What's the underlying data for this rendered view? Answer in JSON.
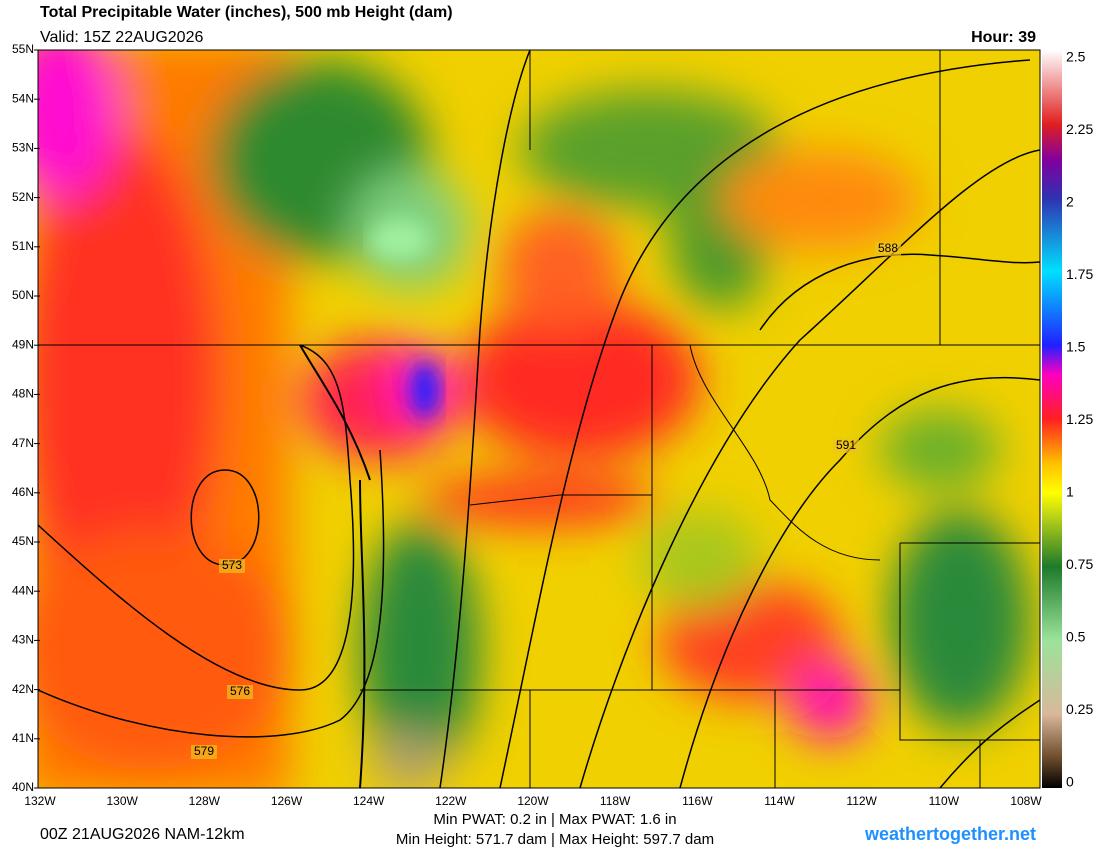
{
  "header": {
    "title": "Total Precipitable Water (inches), 500 mb Height (dam)",
    "valid": "Valid: 15Z 22AUG2026",
    "hour": "Hour: 39"
  },
  "map": {
    "lat_labels": [
      "55N",
      "54N",
      "53N",
      "52N",
      "51N",
      "50N",
      "49N",
      "48N",
      "47N",
      "46N",
      "45N",
      "44N",
      "43N",
      "42N",
      "41N",
      "40N"
    ],
    "lon_labels": [
      "132W",
      "130W",
      "128W",
      "126W",
      "124W",
      "122W",
      "120W",
      "118W",
      "116W",
      "114W",
      "112W",
      "110W",
      "108W"
    ],
    "contour_labels": [
      "573",
      "576",
      "579",
      "588",
      "591"
    ]
  },
  "colorbar": {
    "range": [
      0,
      2.5
    ],
    "ticks": [
      2.5,
      2.25,
      2,
      1.75,
      1.5,
      1.25,
      1,
      0.75,
      0.5,
      0.25,
      0
    ]
  },
  "footer": {
    "run": "00Z 21AUG2026 NAM-12km",
    "pwat": "Min PWAT:   0.2 in | Max PWAT:   1.6 in",
    "heights": "Min Height: 571.7 dam | Max Height: 597.7 dam",
    "site": "weathertogether.net"
  }
}
